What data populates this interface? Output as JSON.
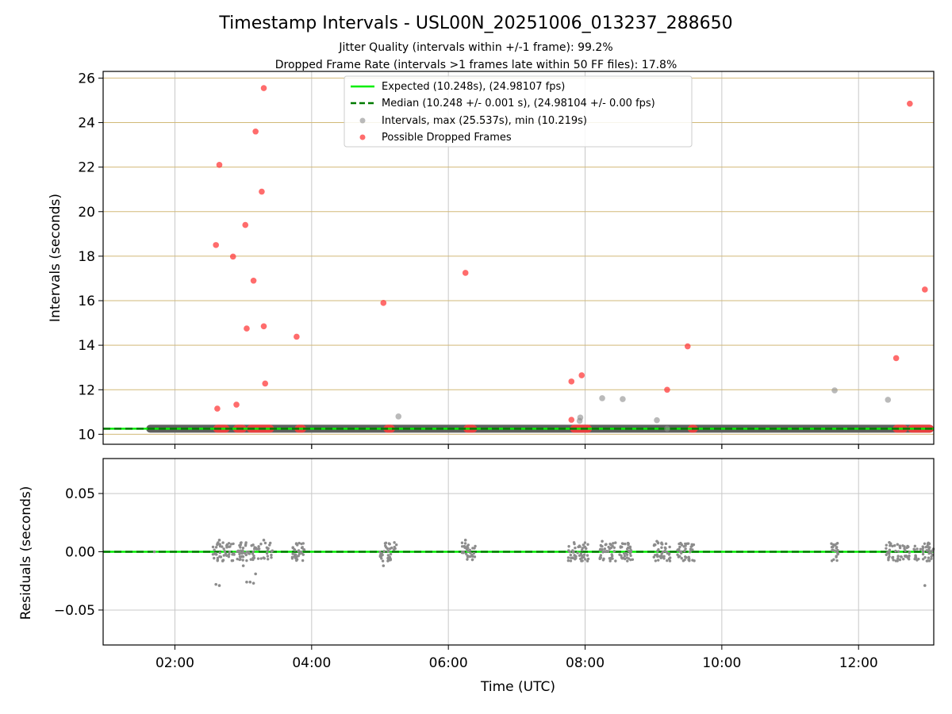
{
  "chart_data": [
    {
      "type": "scatter",
      "title": "Timestamp Intervals - USL00N_20251006_013237_288650",
      "subtitle_lines": [
        "Jitter Quality (intervals within +/-1 frame): 99.2%",
        "Dropped Frame Rate (intervals >1 frames late within 50 FF files): 17.8%"
      ],
      "xlabel": "",
      "ylabel": "Intervals (seconds)",
      "xlim": [
        0.95,
        13.1
      ],
      "ylim": [
        9.55,
        26.3
      ],
      "yticks": [
        10,
        12,
        14,
        16,
        18,
        20,
        22,
        24,
        26
      ],
      "ytick_labels": [
        "10",
        "12",
        "14",
        "16",
        "18",
        "20",
        "22",
        "24",
        "26"
      ],
      "xticks": [
        2,
        4,
        6,
        8,
        10,
        12
      ],
      "colors": {
        "expected": "#00ee00",
        "median": "#007a00",
        "intervals": "#8c8c8c",
        "dropped": "#ff3b3b",
        "grid_y": "#d2b978",
        "grid_x": "#c8c8c8"
      },
      "legend": {
        "position": "top-center",
        "entries": [
          "Expected (10.248s), (24.98107 fps)",
          "Median (10.248 +/- 0.001 s), (24.98104 +/- 0.00 fps)",
          "Intervals, max (25.537s), min (10.219s)",
          "Possible Dropped Frames"
        ]
      },
      "expected_value": 10.248,
      "median_value": 10.248,
      "baseline_span": [
        1.58,
        13.1
      ],
      "dropped_clusters": [
        [
          2.56,
          2.8
        ],
        [
          2.85,
          3.05
        ],
        [
          3.05,
          3.45
        ],
        [
          3.75,
          3.92
        ],
        [
          5.05,
          5.22
        ],
        [
          6.22,
          6.42
        ],
        [
          7.78,
          8.1
        ],
        [
          9.5,
          9.65
        ],
        [
          12.5,
          12.72
        ],
        [
          12.72,
          13.1
        ]
      ],
      "series": [
        {
          "name": "Intervals",
          "points": [
            [
              5.27,
              10.8
            ],
            [
              7.93,
              10.75
            ],
            [
              7.92,
              10.6
            ],
            [
              8.25,
              11.62
            ],
            [
              8.55,
              11.58
            ],
            [
              9.05,
              10.63
            ],
            [
              9.2,
              10.25
            ],
            [
              11.65,
              11.97
            ],
            [
              12.43,
              11.55
            ]
          ]
        },
        {
          "name": "Possible Dropped Frames",
          "points": [
            [
              3.3,
              25.55
            ],
            [
              3.18,
              23.6
            ],
            [
              2.65,
              22.1
            ],
            [
              3.27,
              20.9
            ],
            [
              3.03,
              19.4
            ],
            [
              2.6,
              18.5
            ],
            [
              2.85,
              17.98
            ],
            [
              3.15,
              16.9
            ],
            [
              6.25,
              17.25
            ],
            [
              5.05,
              15.9
            ],
            [
              12.97,
              16.5
            ],
            [
              3.05,
              14.75
            ],
            [
              3.3,
              14.85
            ],
            [
              3.78,
              14.38
            ],
            [
              9.5,
              13.95
            ],
            [
              12.55,
              13.42
            ],
            [
              12.75,
              24.85
            ],
            [
              7.95,
              12.65
            ],
            [
              7.8,
              12.37
            ],
            [
              3.32,
              12.28
            ],
            [
              9.2,
              12.0
            ],
            [
              2.9,
              11.33
            ],
            [
              2.62,
              11.15
            ],
            [
              7.8,
              10.65
            ]
          ]
        }
      ]
    },
    {
      "type": "scatter",
      "title": "",
      "xlabel": "Time (UTC)",
      "ylabel": "Residuals (seconds)",
      "xlim": [
        0.95,
        13.1
      ],
      "ylim": [
        -0.08,
        0.08
      ],
      "yticks": [
        -0.05,
        0,
        0.05
      ],
      "ytick_labels": [
        "−0.05",
        "0.00",
        "0.05"
      ],
      "xticks": [
        2,
        4,
        6,
        8,
        10,
        12
      ],
      "xtick_labels": [
        "02:00",
        "04:00",
        "06:00",
        "08:00",
        "10:00",
        "12:00"
      ],
      "residual_clusters": [
        [
          2.55,
          3.45
        ],
        [
          3.7,
          3.9
        ],
        [
          5.0,
          5.25
        ],
        [
          6.2,
          6.4
        ],
        [
          7.75,
          8.05
        ],
        [
          8.2,
          8.45
        ],
        [
          8.5,
          8.7
        ],
        [
          9.0,
          9.25
        ],
        [
          9.35,
          9.6
        ],
        [
          11.6,
          11.7
        ],
        [
          12.4,
          12.75
        ],
        [
          12.8,
          13.1
        ]
      ],
      "series": [
        {
          "name": "Residuals",
          "points": [
            [
              1.7,
              0.0
            ],
            [
              2.6,
              -0.028
            ],
            [
              2.65,
              -0.029
            ],
            [
              3.05,
              -0.026
            ],
            [
              3.1,
              -0.026
            ],
            [
              3.15,
              -0.027
            ],
            [
              3.18,
              -0.019
            ],
            [
              3.0,
              -0.012
            ],
            [
              5.05,
              -0.012
            ],
            [
              12.97,
              -0.029
            ],
            [
              2.65,
              0.01
            ],
            [
              3.3,
              0.01
            ],
            [
              6.25,
              0.01
            ],
            [
              8.25,
              0.009
            ],
            [
              9.05,
              0.009
            ],
            [
              12.45,
              0.008
            ]
          ]
        }
      ]
    }
  ]
}
